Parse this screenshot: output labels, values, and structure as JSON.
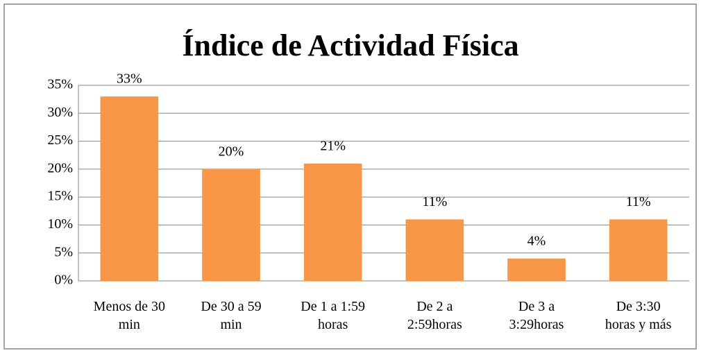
{
  "chart_data": {
    "type": "bar",
    "title": "Índice de Actividad Física",
    "categories": [
      "Menos de 30 min",
      "De 30 a 59 min",
      "De 1 a 1:59 horas",
      "De 2 a 2:59horas",
      "De 3 a 3:29horas",
      "De 3:30 horas y más"
    ],
    "values": [
      33,
      20,
      21,
      11,
      4,
      11
    ],
    "value_labels": [
      "33%",
      "20%",
      "21%",
      "11%",
      "4%",
      "11%"
    ],
    "color": "#f79646",
    "ylim": [
      0,
      35
    ],
    "yticks": [
      {
        "value": 0,
        "label": "0%"
      },
      {
        "value": 5,
        "label": "5%"
      },
      {
        "value": 10,
        "label": "10%"
      },
      {
        "value": 15,
        "label": "15%"
      },
      {
        "value": 20,
        "label": "20%"
      },
      {
        "value": 25,
        "label": "25%"
      },
      {
        "value": 30,
        "label": "30%"
      },
      {
        "value": 35,
        "label": "35%"
      }
    ],
    "grid": true
  }
}
